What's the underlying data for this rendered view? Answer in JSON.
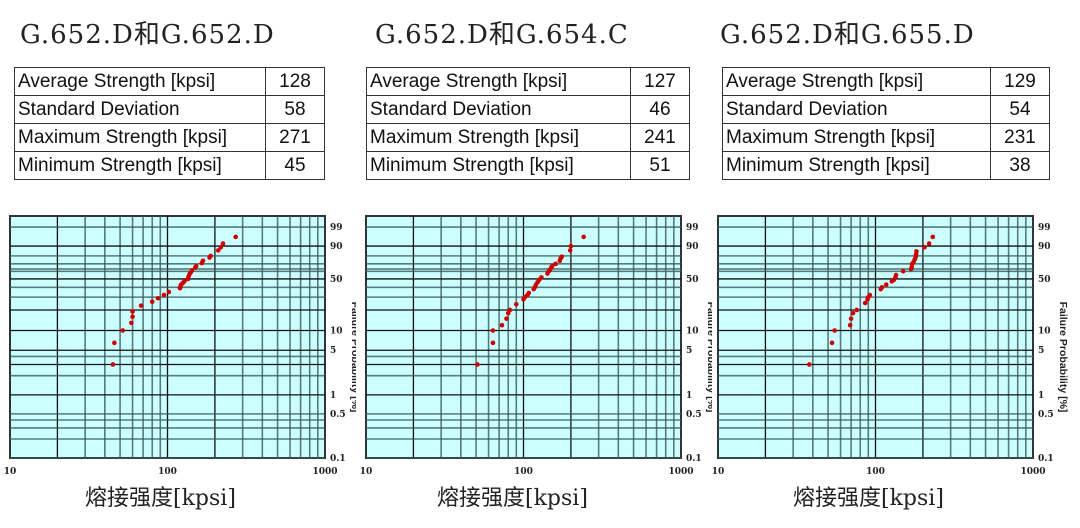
{
  "panels": [
    {
      "title": "G.652.D和G.652.D",
      "table": [
        [
          "Average Strength [kpsi]",
          "128"
        ],
        [
          "Standard Deviation",
          "58"
        ],
        [
          "Maximum Strength [kpsi]",
          "271"
        ],
        [
          "Minimum Strength [kpsi]",
          "45"
        ]
      ],
      "xtitle": "熔接强度[kpsi]"
    },
    {
      "title": "G.652.D和G.654.C",
      "table": [
        [
          "Average Strength [kpsi]",
          "127"
        ],
        [
          "Standard Deviation",
          "46"
        ],
        [
          "Maximum Strength [kpsi]",
          "241"
        ],
        [
          "Minimum Strength [kpsi]",
          "51"
        ]
      ],
      "xtitle": "熔接强度[kpsi]"
    },
    {
      "title": "G.652.D和G.655.D",
      "table": [
        [
          "Average Strength [kpsi]",
          "129"
        ],
        [
          "Standard Deviation",
          "54"
        ],
        [
          "Maximum Strength [kpsi]",
          "231"
        ],
        [
          "Minimum Strength [kpsi]",
          "38"
        ]
      ],
      "xtitle": "熔接强度[kpsi]"
    }
  ],
  "chart_data": [
    {
      "type": "scatter",
      "xscale": "log",
      "yscale": "weibull",
      "xlim": [
        10,
        1000
      ],
      "ylim": [
        0.1,
        99.9
      ],
      "xlabel": "熔接强度[kpsi]",
      "ylabel": "Failure Probability [%]",
      "xticks": [
        "10",
        "100",
        "1000"
      ],
      "yticks": [
        "99",
        "90",
        "50",
        "10",
        "5",
        "1",
        "0.5",
        "0.1"
      ],
      "grid": true,
      "background": "#ccffff",
      "point_color": "#cc0000",
      "points": [
        [
          45,
          3
        ],
        [
          46,
          6.5
        ],
        [
          52,
          10
        ],
        [
          59,
          13
        ],
        [
          60,
          16
        ],
        [
          60,
          19
        ],
        [
          68,
          23
        ],
        [
          80,
          26
        ],
        [
          87,
          29
        ],
        [
          95,
          32
        ],
        [
          102,
          35
        ],
        [
          120,
          39
        ],
        [
          121,
          41
        ],
        [
          122,
          43
        ],
        [
          125,
          45
        ],
        [
          128,
          47
        ],
        [
          135,
          50
        ],
        [
          136,
          53
        ],
        [
          138,
          56
        ],
        [
          140,
          58
        ],
        [
          143,
          61
        ],
        [
          150,
          65
        ],
        [
          152,
          67
        ],
        [
          165,
          71
        ],
        [
          168,
          74
        ],
        [
          185,
          78
        ],
        [
          188,
          80
        ],
        [
          210,
          86
        ],
        [
          218,
          89
        ],
        [
          225,
          92
        ],
        [
          271,
          96
        ]
      ]
    },
    {
      "type": "scatter",
      "xscale": "log",
      "yscale": "weibull",
      "xlim": [
        10,
        1000
      ],
      "ylim": [
        0.1,
        99.9
      ],
      "xlabel": "熔接强度[kpsi]",
      "ylabel": "Failure Probability [%]",
      "xticks": [
        "10",
        "100",
        "1000"
      ],
      "yticks": [
        "99",
        "90",
        "50",
        "10",
        "5",
        "1",
        "0.5",
        "0.1"
      ],
      "grid": true,
      "background": "#ccffff",
      "point_color": "#cc0000",
      "points": [
        [
          51,
          3
        ],
        [
          64,
          6.5
        ],
        [
          64,
          10
        ],
        [
          73,
          12
        ],
        [
          78,
          15
        ],
        [
          80,
          18
        ],
        [
          82,
          20
        ],
        [
          90,
          24
        ],
        [
          100,
          28
        ],
        [
          102,
          30
        ],
        [
          106,
          32
        ],
        [
          108,
          34
        ],
        [
          116,
          38
        ],
        [
          118,
          40
        ],
        [
          120,
          43
        ],
        [
          123,
          46
        ],
        [
          126,
          49
        ],
        [
          130,
          52
        ],
        [
          142,
          57
        ],
        [
          145,
          60
        ],
        [
          147,
          62
        ],
        [
          150,
          65
        ],
        [
          152,
          67
        ],
        [
          160,
          70
        ],
        [
          170,
          74
        ],
        [
          172,
          77
        ],
        [
          175,
          79
        ],
        [
          198,
          86
        ],
        [
          200,
          90
        ],
        [
          241,
          96
        ]
      ]
    },
    {
      "type": "scatter",
      "xscale": "log",
      "yscale": "weibull",
      "xlim": [
        10,
        1000
      ],
      "ylim": [
        0.1,
        99.9
      ],
      "xlabel": "熔接强度[kpsi]",
      "ylabel": "Failure Probability [%]",
      "xticks": [
        "10",
        "100",
        "1000"
      ],
      "yticks": [
        "99",
        "90",
        "50",
        "10",
        "5",
        "1",
        "0.5",
        "0.1"
      ],
      "grid": true,
      "background": "#ccffff",
      "point_color": "#cc0000",
      "points": [
        [
          38,
          3
        ],
        [
          53,
          6.5
        ],
        [
          55,
          10
        ],
        [
          69,
          12
        ],
        [
          70,
          15
        ],
        [
          72,
          18
        ],
        [
          76,
          20
        ],
        [
          86,
          25
        ],
        [
          89,
          28
        ],
        [
          90,
          30
        ],
        [
          92,
          32
        ],
        [
          108,
          38
        ],
        [
          110,
          40
        ],
        [
          117,
          43
        ],
        [
          127,
          47
        ],
        [
          131,
          49
        ],
        [
          134,
          52
        ],
        [
          135,
          55
        ],
        [
          150,
          60
        ],
        [
          168,
          63
        ],
        [
          170,
          66
        ],
        [
          171,
          70
        ],
        [
          175,
          73
        ],
        [
          178,
          76
        ],
        [
          180,
          79
        ],
        [
          181,
          82
        ],
        [
          182,
          85
        ],
        [
          205,
          89
        ],
        [
          219,
          92
        ],
        [
          231,
          96
        ]
      ]
    }
  ]
}
